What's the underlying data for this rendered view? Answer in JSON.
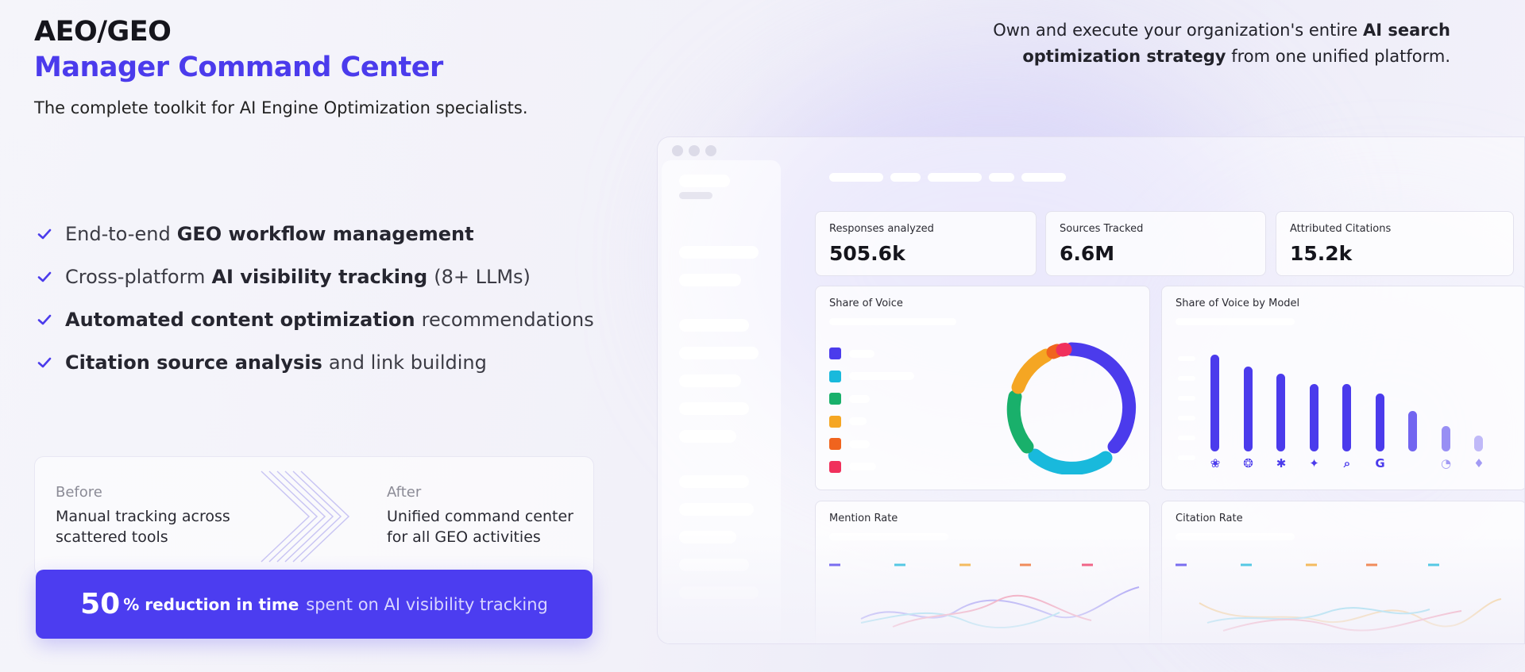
{
  "hero": {
    "title_line1": "AEO/GEO",
    "title_line2": "Manager Command Center",
    "tagline": "The complete toolkit for AI Engine Optimization specialists."
  },
  "intro": {
    "pre": "Own and execute your organization's entire",
    "bold": "AI search optimization strategy",
    "post": "from one unified platform."
  },
  "features": [
    {
      "pre": "End-to-end",
      "bold": "GEO workflow management",
      "post": ""
    },
    {
      "pre": "Cross-platform",
      "bold": "AI visibility tracking",
      "post": "(8+ LLMs)"
    },
    {
      "pre": "",
      "bold": "Automated content optimization",
      "post": "recommendations"
    },
    {
      "pre": "",
      "bold": "Citation source analysis",
      "post": "and link building"
    }
  ],
  "comparison": {
    "before_label": "Before",
    "before_text": "Manual tracking across scattered tools",
    "after_label": "After",
    "after_text": "Unified command center for all GEO activities"
  },
  "banner": {
    "number": "50",
    "bold": "% reduction in time",
    "rest": "spent on AI visibility tracking"
  },
  "dashboard": {
    "kpis": [
      {
        "label": "Responses analyzed",
        "value": "505.6k"
      },
      {
        "label": "Sources Tracked",
        "value": "6.6M"
      },
      {
        "label": "Attributed Citations",
        "value": "15.2k"
      }
    ],
    "share_of_voice": {
      "title": "Share of Voice",
      "legend_colors": [
        "#4b3bec",
        "#19b9dc",
        "#19b06b",
        "#f5a623",
        "#f0641e",
        "#f0305c"
      ]
    },
    "share_by_model": {
      "title": "Share of Voice by Model",
      "bars": [
        1.0,
        0.88,
        0.8,
        0.7,
        0.7,
        0.6,
        0.42,
        0.26,
        0.16
      ],
      "icons": [
        "openai-icon",
        "claude-icon",
        "perplexity-icon",
        "gemini-icon",
        "search-icon",
        "google-icon",
        "blank-icon",
        "copilot-icon",
        "other-icon"
      ]
    },
    "mention_rate": {
      "title": "Mention Rate"
    },
    "citation_rate": {
      "title": "Citation Rate"
    }
  },
  "colors": {
    "accent": "#4b3bec",
    "banner": "#4c3df0"
  }
}
